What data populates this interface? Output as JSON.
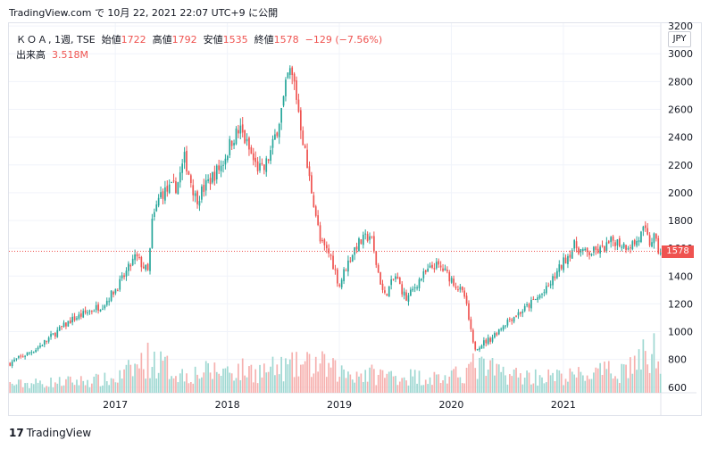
{
  "header": {
    "title": "TradingView.com で 10月 22, 2021 22:07 UTC+9 に公開"
  },
  "legend": {
    "symbol": "ＫＯＡ",
    "interval": "1週",
    "exchange": "TSE",
    "open_label": "始値",
    "open": "1722",
    "high_label": "高値",
    "high": "1792",
    "low_label": "安値",
    "low": "1535",
    "close_label": "終値",
    "close": "1578",
    "change": "−129 (−7.56%)",
    "volume_label": "出来高",
    "volume": "3.518M"
  },
  "currency": "JPY",
  "last_price": "1578",
  "footer": {
    "logo": "17",
    "brand": "TradingView"
  },
  "colors": {
    "up": "#26a69a",
    "down": "#ef5350",
    "up_volume": "#9fd8d2",
    "down_volume": "#f6b0ae",
    "grid": "#f0f3fa"
  },
  "chart_data": {
    "type": "candlestick",
    "x_unit": "year",
    "xlim": [
      2016.05,
      2021.87
    ],
    "ylim": [
      560,
      3220
    ],
    "y_ticks": [
      600,
      800,
      1000,
      1200,
      1400,
      1600,
      1800,
      2000,
      2200,
      2400,
      2600,
      2800,
      3000,
      3200
    ],
    "x_ticks": [
      2017,
      2018,
      2019,
      2020,
      2021
    ],
    "x_tick_labels": [
      "2017",
      "2018",
      "2019",
      "2020",
      "2021"
    ],
    "last_close": 1578,
    "price_path": [
      [
        2016.05,
        770
      ],
      [
        2016.3,
        880
      ],
      [
        2016.6,
        1080
      ],
      [
        2016.9,
        1200
      ],
      [
        2017.05,
        1360
      ],
      [
        2017.18,
        1540
      ],
      [
        2017.3,
        1420
      ],
      [
        2017.32,
        1760
      ],
      [
        2017.4,
        1990
      ],
      [
        2017.55,
        2050
      ],
      [
        2017.62,
        2250
      ],
      [
        2017.72,
        1950
      ],
      [
        2017.85,
        2100
      ],
      [
        2017.95,
        2200
      ],
      [
        2018.05,
        2400
      ],
      [
        2018.12,
        2450
      ],
      [
        2018.25,
        2200
      ],
      [
        2018.32,
        2150
      ],
      [
        2018.4,
        2320
      ],
      [
        2018.5,
        2650
      ],
      [
        2018.55,
        2880
      ],
      [
        2018.6,
        2780
      ],
      [
        2018.72,
        2150
      ],
      [
        2018.78,
        1900
      ],
      [
        2018.83,
        1640
      ],
      [
        2018.92,
        1550
      ],
      [
        2019.0,
        1330
      ],
      [
        2019.05,
        1450
      ],
      [
        2019.15,
        1620
      ],
      [
        2019.28,
        1700
      ],
      [
        2019.32,
        1520
      ],
      [
        2019.4,
        1250
      ],
      [
        2019.5,
        1400
      ],
      [
        2019.6,
        1230
      ],
      [
        2019.72,
        1380
      ],
      [
        2019.85,
        1480
      ],
      [
        2019.92,
        1450
      ],
      [
        2020.0,
        1380
      ],
      [
        2020.12,
        1250
      ],
      [
        2020.2,
        880
      ],
      [
        2020.35,
        950
      ],
      [
        2020.5,
        1080
      ],
      [
        2020.65,
        1160
      ],
      [
        2020.75,
        1230
      ],
      [
        2020.85,
        1300
      ],
      [
        2021.0,
        1500
      ],
      [
        2021.1,
        1620
      ],
      [
        2021.2,
        1560
      ],
      [
        2021.35,
        1590
      ],
      [
        2021.45,
        1660
      ],
      [
        2021.55,
        1620
      ],
      [
        2021.65,
        1640
      ],
      [
        2021.72,
        1730
      ],
      [
        2021.78,
        1620
      ],
      [
        2021.8,
        1700
      ],
      [
        2021.85,
        1578
      ]
    ],
    "volume_ylim": [
      0,
      2400000
    ],
    "volume_profile": [
      [
        2016.05,
        350000
      ],
      [
        2017.0,
        550000
      ],
      [
        2017.3,
        1400000
      ],
      [
        2017.6,
        750000
      ],
      [
        2018.0,
        950000
      ],
      [
        2018.3,
        900000
      ],
      [
        2018.8,
        1200000
      ],
      [
        2019.0,
        850000
      ],
      [
        2019.5,
        700000
      ],
      [
        2020.0,
        600000
      ],
      [
        2020.2,
        1100000
      ],
      [
        2020.6,
        700000
      ],
      [
        2021.0,
        650000
      ],
      [
        2021.5,
        900000
      ],
      [
        2021.85,
        1800000
      ]
    ]
  }
}
